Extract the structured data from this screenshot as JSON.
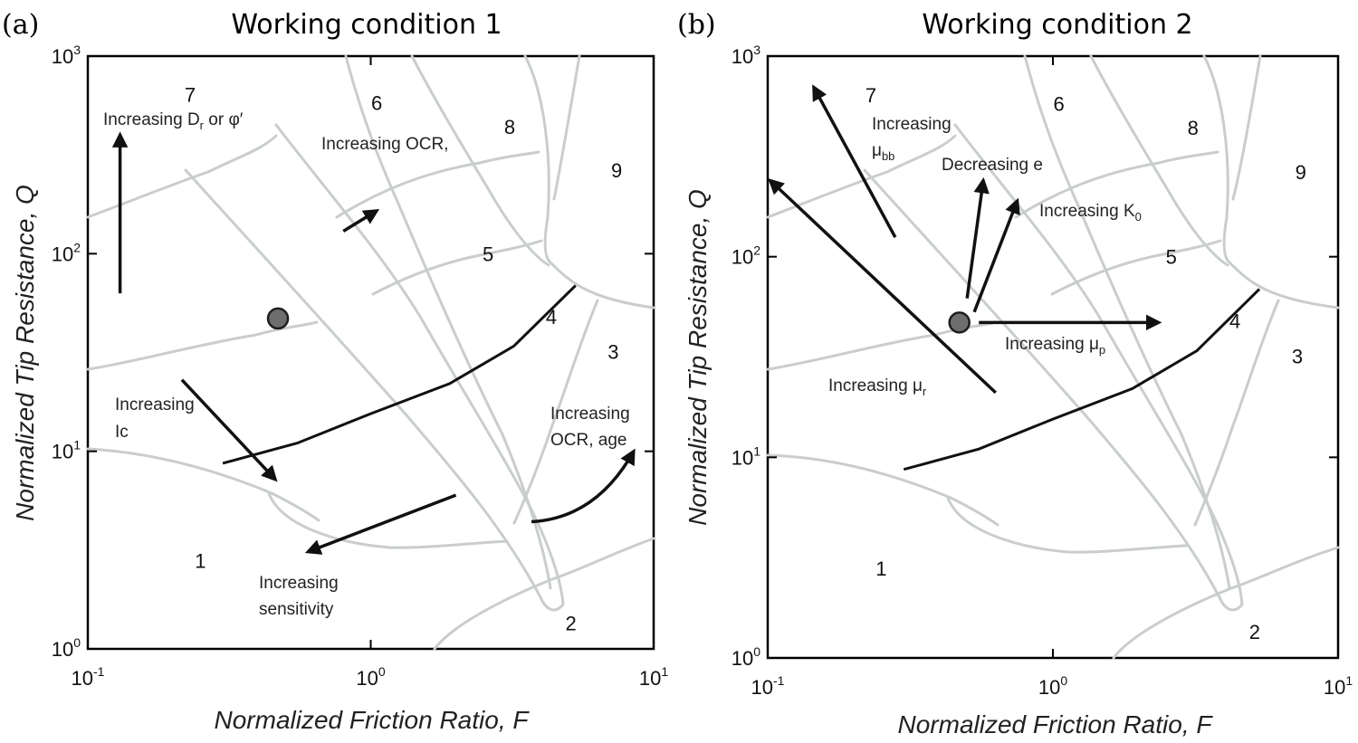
{
  "chart_data": [
    {
      "type": "scatter",
      "panel_label": "(a)",
      "title": "Working condition 1",
      "xlabel": "Normalized Friction Ratio, F",
      "ylabel": "Normalized Tip Resistance, Q",
      "xscale": "log",
      "yscale": "log",
      "xlim": [
        0.1,
        10
      ],
      "ylim": [
        1,
        1000
      ],
      "x_ticks": [
        {
          "base": "10",
          "exp": "-1"
        },
        {
          "base": "10",
          "exp": "0"
        },
        {
          "base": "10",
          "exp": "1"
        }
      ],
      "y_ticks": [
        {
          "base": "10",
          "exp": "0"
        },
        {
          "base": "10",
          "exp": "1"
        },
        {
          "base": "10",
          "exp": "2"
        },
        {
          "base": "10",
          "exp": "3"
        }
      ],
      "zones": [
        {
          "label": "1",
          "x": 0.25,
          "y": 2.8
        },
        {
          "label": "2",
          "x": 5.1,
          "y": 1.35
        },
        {
          "label": "3",
          "x": 7.2,
          "y": 32
        },
        {
          "label": "4",
          "x": 4.35,
          "y": 48
        },
        {
          "label": "5",
          "x": 2.6,
          "y": 100
        },
        {
          "label": "6",
          "x": 1.05,
          "y": 580
        },
        {
          "label": "7",
          "x": 0.23,
          "y": 640
        },
        {
          "label": "8",
          "x": 3.1,
          "y": 440
        },
        {
          "label": "9",
          "x": 7.4,
          "y": 265
        }
      ],
      "points": [
        {
          "x": 0.47,
          "y": 47
        }
      ],
      "trend_line": [
        {
          "x": 0.3,
          "y": 8.7
        },
        {
          "x": 0.55,
          "y": 11
        },
        {
          "x": 1.0,
          "y": 15.5
        },
        {
          "x": 1.9,
          "y": 22
        },
        {
          "x": 3.2,
          "y": 34
        },
        {
          "x": 5.3,
          "y": 69
        }
      ],
      "arrows": [
        {
          "from": {
            "x": 0.13,
            "y": 63
          },
          "to": {
            "x": 0.13,
            "y": 400
          },
          "label": "Increasing D",
          "sub": "r",
          "label2": " or φ′"
        },
        {
          "from": {
            "x": 0.8,
            "y": 130
          },
          "to": {
            "x": 1.05,
            "y": 165
          },
          "label": "Increasing OCR,",
          "sub": "",
          "label2": ""
        },
        {
          "from": {
            "x": 0.215,
            "y": 23
          },
          "to": {
            "x": 0.46,
            "y": 7.2
          },
          "label": "Increasing",
          "sub": "",
          "label2": "Ic"
        },
        {
          "from": {
            "x": 2.0,
            "y": 6
          },
          "to": {
            "x": 0.6,
            "y": 3.1
          },
          "label": "Increasing",
          "sub": "",
          "label2": "sensitivity"
        },
        {
          "from": {
            "x": 3.7,
            "y": 4.4
          },
          "to": {
            "x": 8.5,
            "y": 10
          },
          "label": "Increasing",
          "sub": "",
          "label2": "OCR, age"
        }
      ]
    },
    {
      "type": "scatter",
      "panel_label": "(b)",
      "title": "Working condition 2",
      "xlabel": "Normalized Friction Ratio, F",
      "ylabel": "Normalized Tip Resistance, Q",
      "xscale": "log",
      "yscale": "log",
      "xlim": [
        0.1,
        10
      ],
      "ylim": [
        1,
        1000
      ],
      "x_ticks": [
        {
          "base": "10",
          "exp": "-1"
        },
        {
          "base": "10",
          "exp": "0"
        },
        {
          "base": "10",
          "exp": "1"
        }
      ],
      "y_ticks": [
        {
          "base": "10",
          "exp": "0"
        },
        {
          "base": "10",
          "exp": "1"
        },
        {
          "base": "10",
          "exp": "2"
        },
        {
          "base": "10",
          "exp": "3"
        }
      ],
      "zones": [
        {
          "label": "1",
          "x": 0.25,
          "y": 2.8
        },
        {
          "label": "2",
          "x": 5.1,
          "y": 1.35
        },
        {
          "label": "3",
          "x": 7.2,
          "y": 32
        },
        {
          "label": "4",
          "x": 4.35,
          "y": 48
        },
        {
          "label": "5",
          "x": 2.6,
          "y": 100
        },
        {
          "label": "6",
          "x": 1.05,
          "y": 580
        },
        {
          "label": "7",
          "x": 0.23,
          "y": 640
        },
        {
          "label": "8",
          "x": 3.1,
          "y": 440
        },
        {
          "label": "9",
          "x": 7.4,
          "y": 265
        }
      ],
      "points": [
        {
          "x": 0.47,
          "y": 47
        }
      ],
      "trend_line": [
        {
          "x": 0.3,
          "y": 8.7
        },
        {
          "x": 0.55,
          "y": 11
        },
        {
          "x": 1.0,
          "y": 15.5
        },
        {
          "x": 1.9,
          "y": 22
        },
        {
          "x": 3.2,
          "y": 34
        },
        {
          "x": 5.3,
          "y": 69
        }
      ],
      "arrows": [
        {
          "from": {
            "x": 0.28,
            "y": 125
          },
          "to": {
            "x": 0.145,
            "y": 700
          },
          "label": "Increasing",
          "sub": "",
          "label2": "μ",
          "label2_sub": "bb"
        },
        {
          "from": {
            "x": 0.5,
            "y": 62
          },
          "to": {
            "x": 0.57,
            "y": 240
          },
          "label": "Decreasing e",
          "sub": "",
          "label2": ""
        },
        {
          "from": {
            "x": 0.53,
            "y": 53
          },
          "to": {
            "x": 0.75,
            "y": 190
          },
          "label": "Increasing K",
          "sub": "0",
          "label2": ""
        },
        {
          "from": {
            "x": 0.55,
            "y": 47
          },
          "to": {
            "x": 2.35,
            "y": 47
          },
          "label": "Increasing μ",
          "sub": "p",
          "label2": ""
        },
        {
          "from": {
            "x": 0.63,
            "y": 21
          },
          "to": {
            "x": 0.102,
            "y": 240
          },
          "label": "Increasing μ",
          "sub": "r",
          "label2": ""
        }
      ]
    }
  ]
}
